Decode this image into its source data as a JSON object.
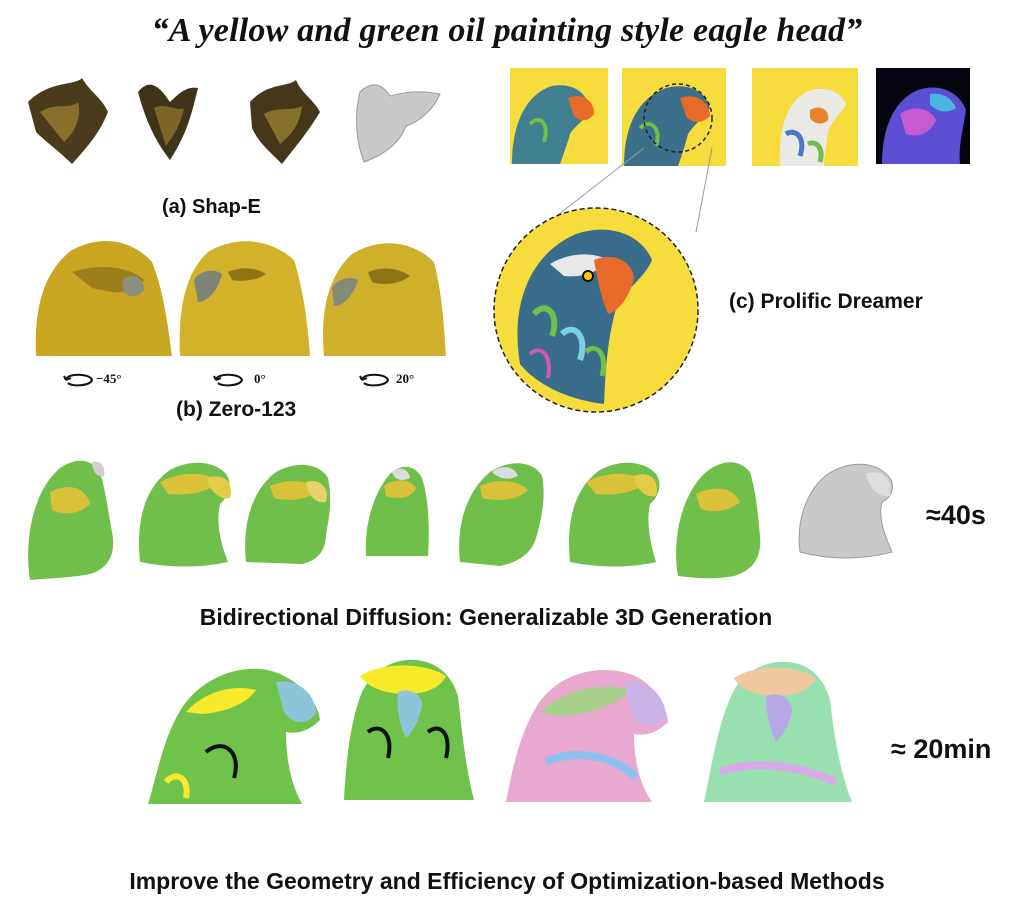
{
  "prompt": "“A yellow and green oil painting style eagle head”",
  "shape_e": {
    "caption": "(a) Shap-E"
  },
  "zero123": {
    "caption": "(b) Zero-123",
    "angles": [
      "−45°",
      "0°",
      "20°"
    ]
  },
  "prolific_dreamer": {
    "caption": "(c) Prolific Dreamer"
  },
  "bidiff": {
    "time": "≈40s",
    "caption": "Bidirectional Diffusion: Generalizable 3D Generation"
  },
  "refine": {
    "time": "≈ 20min",
    "caption": "Improve the Geometry and Efficiency of Optimization-based Methods"
  },
  "colors": {
    "yellow_bg": "#f6dc3c",
    "green": "#6fbf4a",
    "yellow": "#d9c23a",
    "gray": "#bdbdbd"
  }
}
